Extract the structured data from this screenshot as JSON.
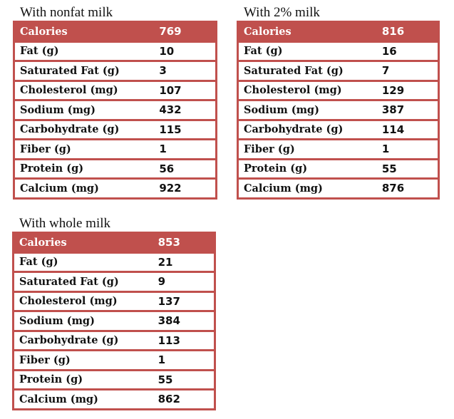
{
  "tables": [
    {
      "title": "With nonfat milk",
      "header": {
        "label": "Calories",
        "value": "769"
      },
      "rows": [
        [
          "Fat (g)",
          "10"
        ],
        [
          "Saturated Fat (g)",
          "3"
        ],
        [
          "Cholesterol (mg)",
          "107"
        ],
        [
          "Sodium (mg)",
          "432"
        ],
        [
          "Carbohydrate (g)",
          "115"
        ],
        [
          "Fiber (g)",
          "1"
        ],
        [
          "Protein (g)",
          "56"
        ],
        [
          "Calcium (mg)",
          "922"
        ]
      ]
    },
    {
      "title": "With 2% milk",
      "header": {
        "label": "Calories",
        "value": "816"
      },
      "rows": [
        [
          "Fat (g)",
          "16"
        ],
        [
          "Saturated Fat (g)",
          "7"
        ],
        [
          "Cholesterol (mg)",
          "129"
        ],
        [
          "Sodium (mg)",
          "387"
        ],
        [
          "Carbohydrate (g)",
          "114"
        ],
        [
          "Fiber (g)",
          "1"
        ],
        [
          "Protein (g)",
          "55"
        ],
        [
          "Calcium (mg)",
          "876"
        ]
      ]
    },
    {
      "title": "With whole milk",
      "header": {
        "label": "Calories",
        "value": "853"
      },
      "rows": [
        [
          "Fat (g)",
          "21"
        ],
        [
          "Saturated Fat (g)",
          "9"
        ],
        [
          "Cholesterol (mg)",
          "137"
        ],
        [
          "Sodium (mg)",
          "384"
        ],
        [
          "Carbohydrate (g)",
          "113"
        ],
        [
          "Fiber (g)",
          "1"
        ],
        [
          "Protein (g)",
          "55"
        ],
        [
          "Calcium (mg)",
          "862"
        ]
      ]
    }
  ],
  "colors": {
    "header": "#c0504d"
  }
}
